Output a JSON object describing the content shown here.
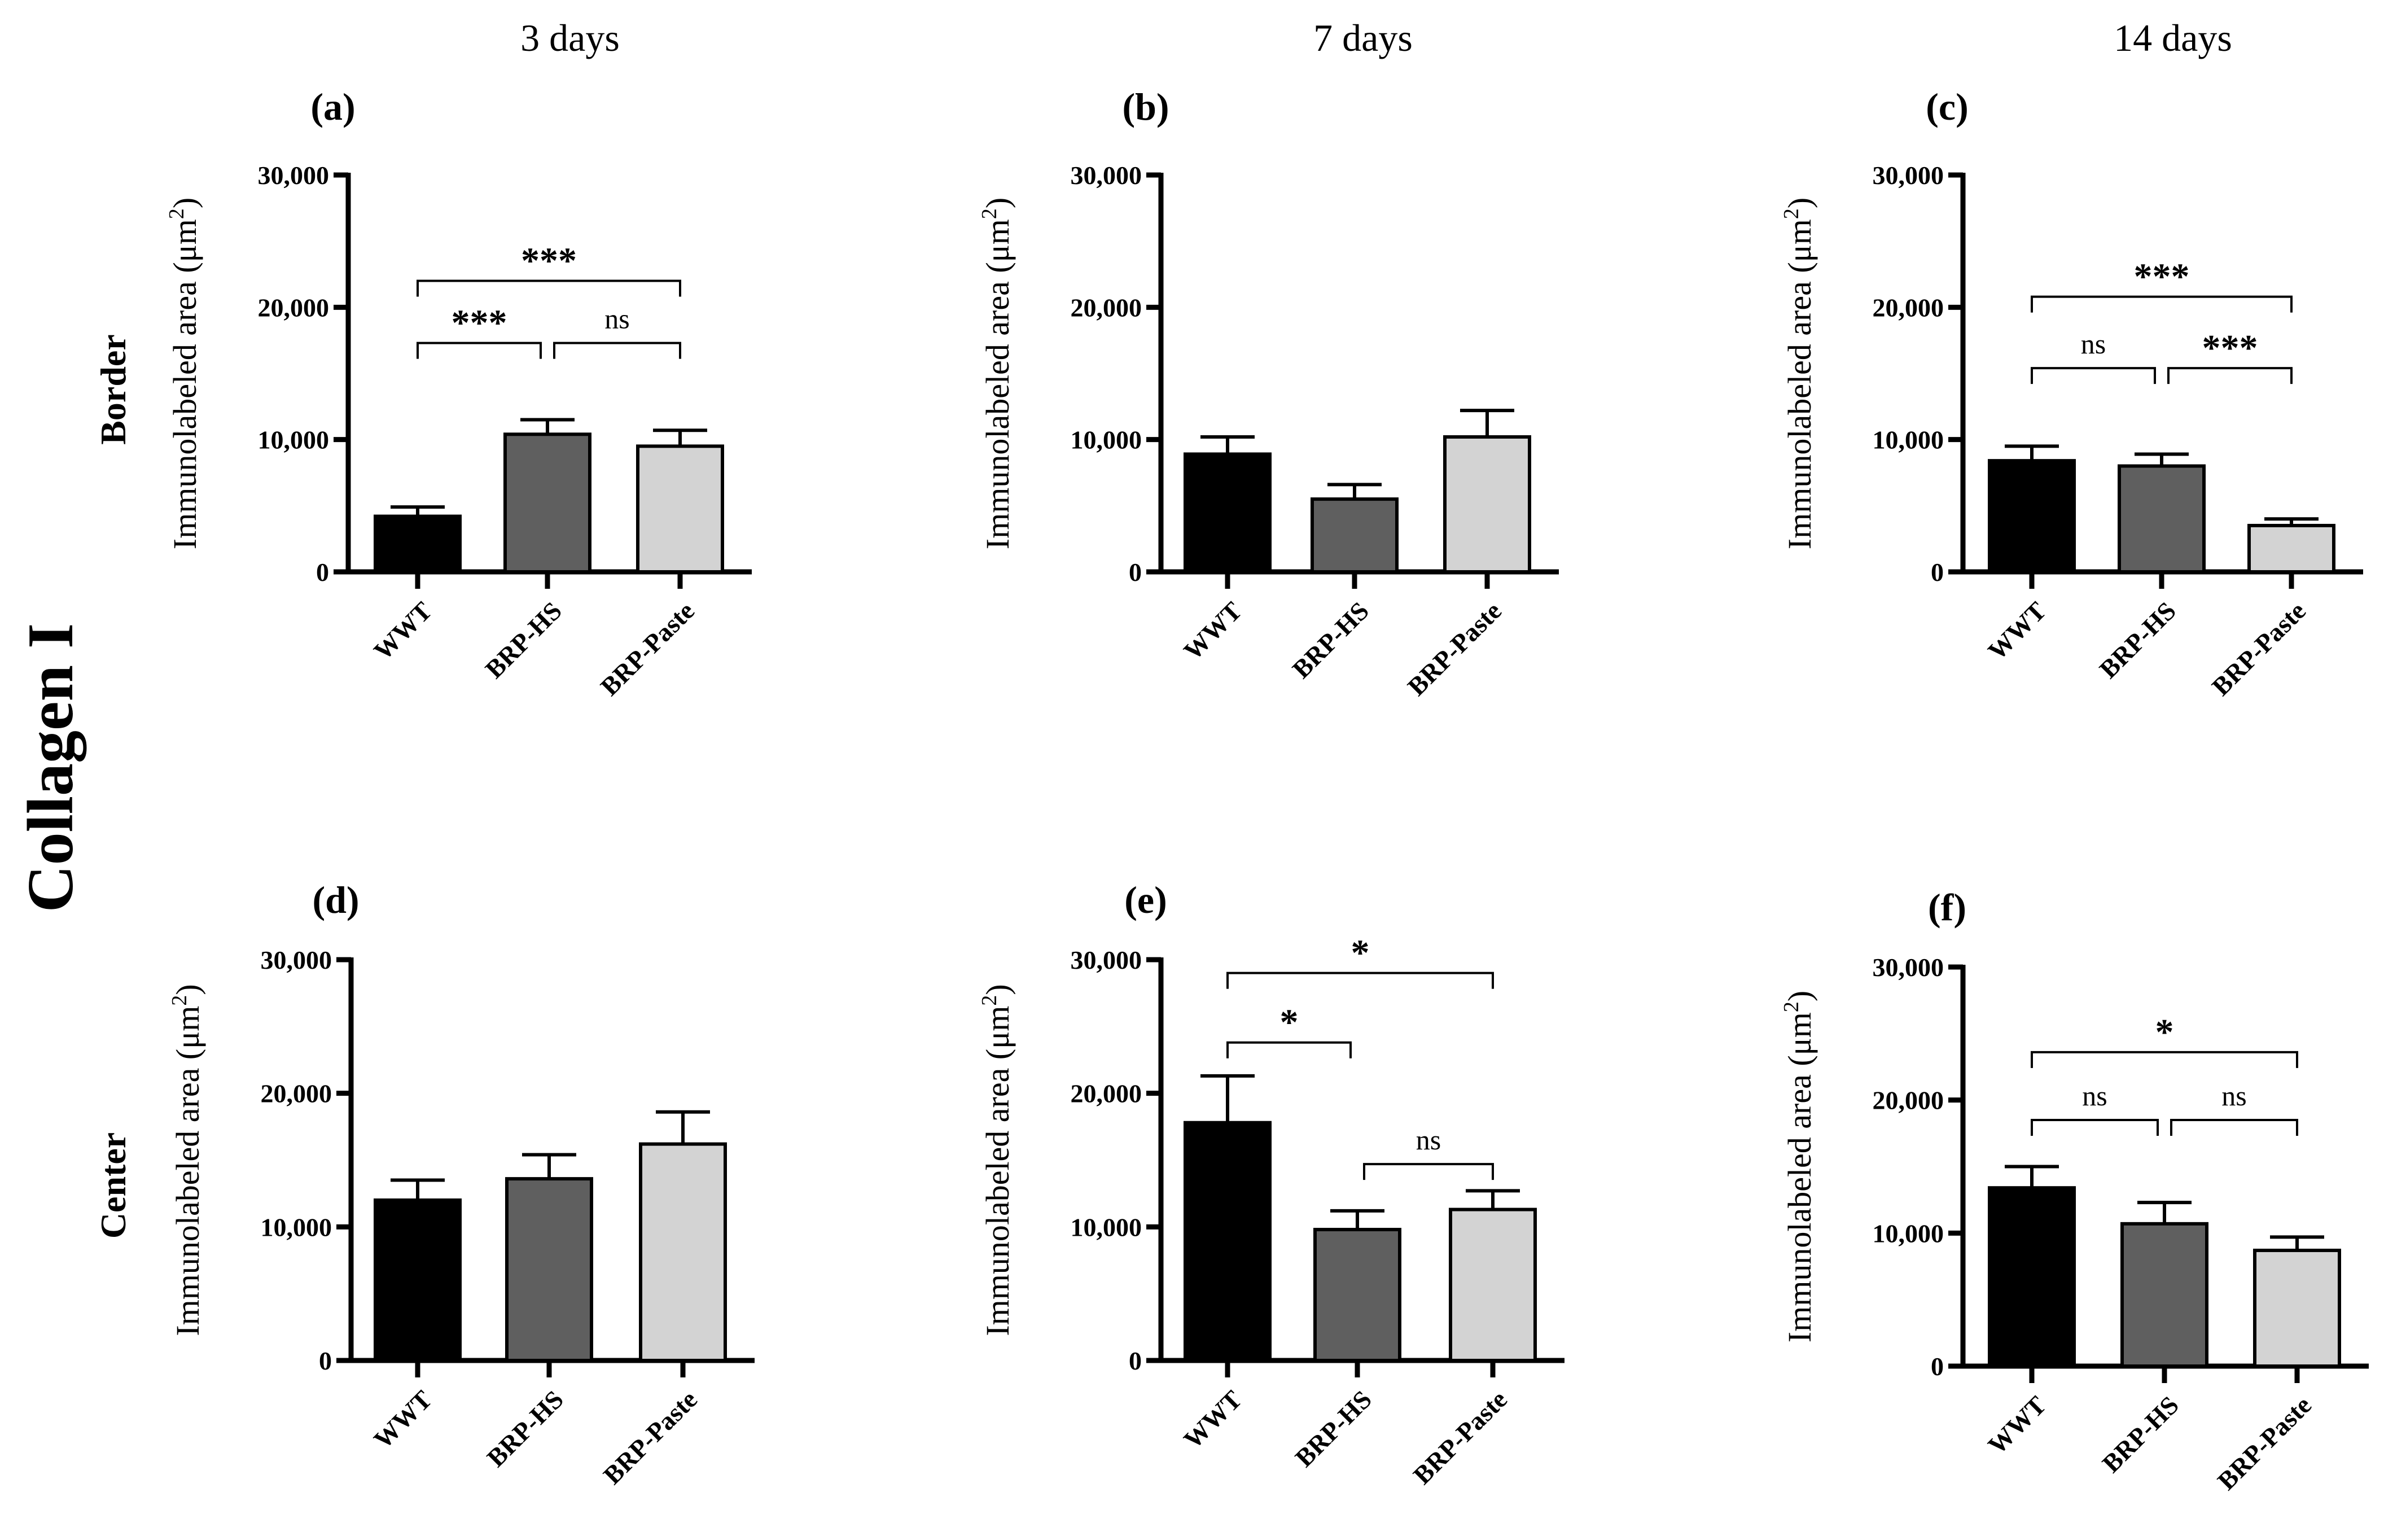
{
  "figure": {
    "main_label": "Collagen I",
    "column_titles": [
      "3 days",
      "7 days",
      "14 days"
    ],
    "row_labels": [
      "Border",
      "Center"
    ],
    "colors": {
      "WWT": "#000000",
      "BRP-HS": "#5f5f5f",
      "BRP-Paste": "#d3d3d3"
    }
  },
  "chart_data": [
    {
      "panel": "(a)",
      "type": "bar",
      "time": "3 days",
      "region": "Border",
      "ylabel": "Immunolabeled area (μm²)",
      "ylabel_text": "Immunolabeled area (μm",
      "ylabel_sup": "2",
      "ylabel_close": ")",
      "ylim": [
        0,
        30000
      ],
      "yticks": [
        0,
        10000,
        20000,
        30000
      ],
      "ytick_labels": [
        "0",
        "10,000",
        "20,000",
        "30,000"
      ],
      "categories": [
        "WWT",
        "BRP-HS",
        "BRP-Paste"
      ],
      "values": [
        4200,
        10400,
        9500
      ],
      "errors": [
        700,
        1100,
        1200
      ],
      "comparisons": [
        {
          "from": 0,
          "to": 2,
          "label": "***",
          "level": 22000
        },
        {
          "from": 0,
          "to": 1,
          "label": "***",
          "level": 17300
        },
        {
          "from": 1,
          "to": 2,
          "label": "ns",
          "level": 17300
        }
      ]
    },
    {
      "panel": "(b)",
      "type": "bar",
      "time": "7 days",
      "region": "Border",
      "ylabel": "Immunolabeled area (μm²)",
      "ylabel_text": "Immunolabeled area (μm",
      "ylabel_sup": "2",
      "ylabel_close": ")",
      "ylim": [
        0,
        30000
      ],
      "yticks": [
        0,
        10000,
        20000,
        30000
      ],
      "ytick_labels": [
        "0",
        "10,000",
        "20,000",
        "30,000"
      ],
      "categories": [
        "WWT",
        "BRP-HS",
        "BRP-Paste"
      ],
      "values": [
        8900,
        5500,
        10200
      ],
      "errors": [
        1300,
        1100,
        2000
      ],
      "comparisons": []
    },
    {
      "panel": "(c)",
      "type": "bar",
      "time": "14 days",
      "region": "Border",
      "ylabel": "Immunolabeled area (μm²)",
      "ylabel_text": "Immunolabeled area (μm",
      "ylabel_sup": "2",
      "ylabel_close": ")",
      "ylim": [
        0,
        30000
      ],
      "yticks": [
        0,
        10000,
        20000,
        30000
      ],
      "ytick_labels": [
        "0",
        "10,000",
        "20,000",
        "30,000"
      ],
      "categories": [
        "WWT",
        "BRP-HS",
        "BRP-Paste"
      ],
      "values": [
        8400,
        8000,
        3500
      ],
      "errors": [
        1100,
        900,
        500
      ],
      "comparisons": [
        {
          "from": 0,
          "to": 2,
          "label": "***",
          "level": 20800
        },
        {
          "from": 0,
          "to": 1,
          "label": "ns",
          "level": 15400
        },
        {
          "from": 1,
          "to": 2,
          "label": "***",
          "level": 15400
        }
      ]
    },
    {
      "panel": "(d)",
      "type": "bar",
      "time": "3 days",
      "region": "Center",
      "ylabel": "Immunolabeled area (μm²)",
      "ylabel_text": "Immunolabeled area (μm",
      "ylabel_sup": "2",
      "ylabel_close": ")",
      "ylim": [
        0,
        30000
      ],
      "yticks": [
        0,
        10000,
        20000,
        30000
      ],
      "ytick_labels": [
        "0",
        "10,000",
        "20,000",
        "30,000"
      ],
      "categories": [
        "WWT",
        "BRP-HS",
        "BRP-Paste"
      ],
      "values": [
        12000,
        13600,
        16200
      ],
      "errors": [
        1500,
        1800,
        2400
      ],
      "comparisons": []
    },
    {
      "panel": "(e)",
      "type": "bar",
      "time": "7 days",
      "region": "Center",
      "ylabel": "Immunolabeled area (μm²)",
      "ylabel_text": "Immunolabeled area (μm",
      "ylabel_sup": "2",
      "ylabel_close": ")",
      "ylim": [
        0,
        30000
      ],
      "yticks": [
        0,
        10000,
        20000,
        30000
      ],
      "ytick_labels": [
        "0",
        "10,000",
        "20,000",
        "30,000"
      ],
      "categories": [
        "WWT",
        "BRP-HS",
        "BRP-Paste"
      ],
      "values": [
        17800,
        9800,
        11300
      ],
      "errors": [
        3500,
        1400,
        1400
      ],
      "comparisons": [
        {
          "from": 0,
          "to": 2,
          "label": "*",
          "level": 29000
        },
        {
          "from": 0,
          "to": 1,
          "label": "*",
          "level": 23800
        },
        {
          "from": 1,
          "to": 2,
          "label": "ns",
          "level": 14700
        }
      ]
    },
    {
      "panel": "(f)",
      "type": "bar",
      "time": "14 days",
      "region": "Center",
      "ylabel": "Immunolabeled area (μm²)",
      "ylabel_text": "Immunolabeled area (μm",
      "ylabel_sup": "2",
      "ylabel_close": ")",
      "ylim": [
        0,
        30000
      ],
      "yticks": [
        0,
        10000,
        20000,
        30000
      ],
      "ytick_labels": [
        "0",
        "10,000",
        "20,000",
        "30,000"
      ],
      "categories": [
        "WWT",
        "BRP-HS",
        "BRP-Paste"
      ],
      "values": [
        13400,
        10700,
        8700
      ],
      "errors": [
        1600,
        1600,
        1000
      ],
      "comparisons": [
        {
          "from": 0,
          "to": 2,
          "label": "*",
          "level": 23600
        },
        {
          "from": 0,
          "to": 1,
          "label": "ns",
          "level": 18500
        },
        {
          "from": 1,
          "to": 2,
          "label": "ns",
          "level": 18500
        }
      ]
    }
  ]
}
